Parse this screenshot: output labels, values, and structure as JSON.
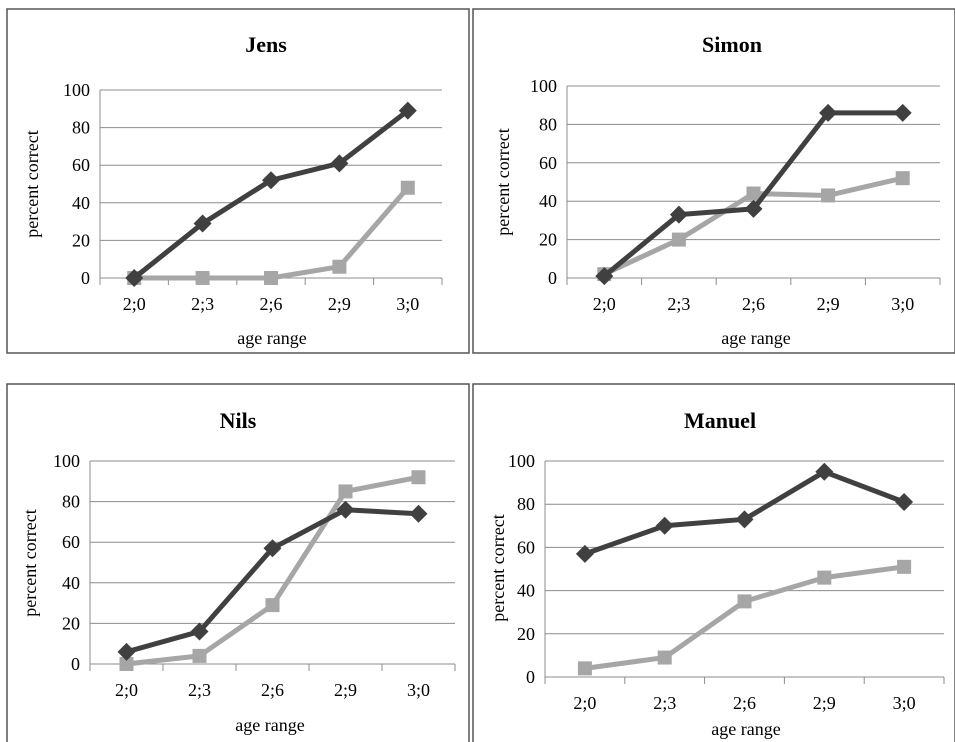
{
  "colors": {
    "series_dark": "#404040",
    "series_light": "#a6a6a6",
    "grid": "#8c8c8c",
    "frame": "#555555"
  },
  "chart_data": [
    {
      "type": "line",
      "title": "Jens",
      "xlabel": "age range",
      "ylabel": "percent correct",
      "categories": [
        "2;0",
        "2;3",
        "2;6",
        "2;9",
        "3;0"
      ],
      "ylim": [
        0,
        100
      ],
      "yticks": [
        0,
        20,
        40,
        60,
        80,
        100
      ],
      "grid": true,
      "series": [
        {
          "marker": "diamond",
          "color": "#404040",
          "values": [
            0,
            29,
            52,
            61,
            89
          ]
        },
        {
          "marker": "square",
          "color": "#a6a6a6",
          "values": [
            0,
            0,
            0,
            6,
            48
          ]
        }
      ]
    },
    {
      "type": "line",
      "title": "Simon",
      "xlabel": "age range",
      "ylabel": "percent correct",
      "categories": [
        "2;0",
        "2;3",
        "2;6",
        "2;9",
        "3;0"
      ],
      "ylim": [
        0,
        100
      ],
      "yticks": [
        0,
        20,
        40,
        60,
        80,
        100
      ],
      "grid": true,
      "series": [
        {
          "marker": "diamond",
          "color": "#404040",
          "values": [
            1,
            33,
            36,
            86,
            86
          ]
        },
        {
          "marker": "square",
          "color": "#a6a6a6",
          "values": [
            2,
            20,
            44,
            43,
            52
          ]
        }
      ]
    },
    {
      "type": "line",
      "title": "Nils",
      "xlabel": "age range",
      "ylabel": "percent correct",
      "categories": [
        "2;0",
        "2;3",
        "2;6",
        "2;9",
        "3;0"
      ],
      "ylim": [
        0,
        100
      ],
      "yticks": [
        0,
        20,
        40,
        60,
        80,
        100
      ],
      "grid": true,
      "series": [
        {
          "marker": "diamond",
          "color": "#404040",
          "values": [
            6,
            16,
            57,
            76,
            74
          ]
        },
        {
          "marker": "square",
          "color": "#a6a6a6",
          "values": [
            0,
            4,
            29,
            85,
            92
          ]
        }
      ]
    },
    {
      "type": "line",
      "title": "Manuel",
      "xlabel": "age range",
      "ylabel": "percent correct",
      "categories": [
        "2;0",
        "2;3",
        "2;6",
        "2;9",
        "3;0"
      ],
      "ylim": [
        0,
        100
      ],
      "yticks": [
        0,
        20,
        40,
        60,
        80,
        100
      ],
      "grid": true,
      "series": [
        {
          "marker": "diamond",
          "color": "#404040",
          "values": [
            57,
            70,
            73,
            95,
            81
          ]
        },
        {
          "marker": "square",
          "color": "#a6a6a6",
          "values": [
            4,
            9,
            35,
            46,
            51
          ]
        }
      ]
    }
  ]
}
